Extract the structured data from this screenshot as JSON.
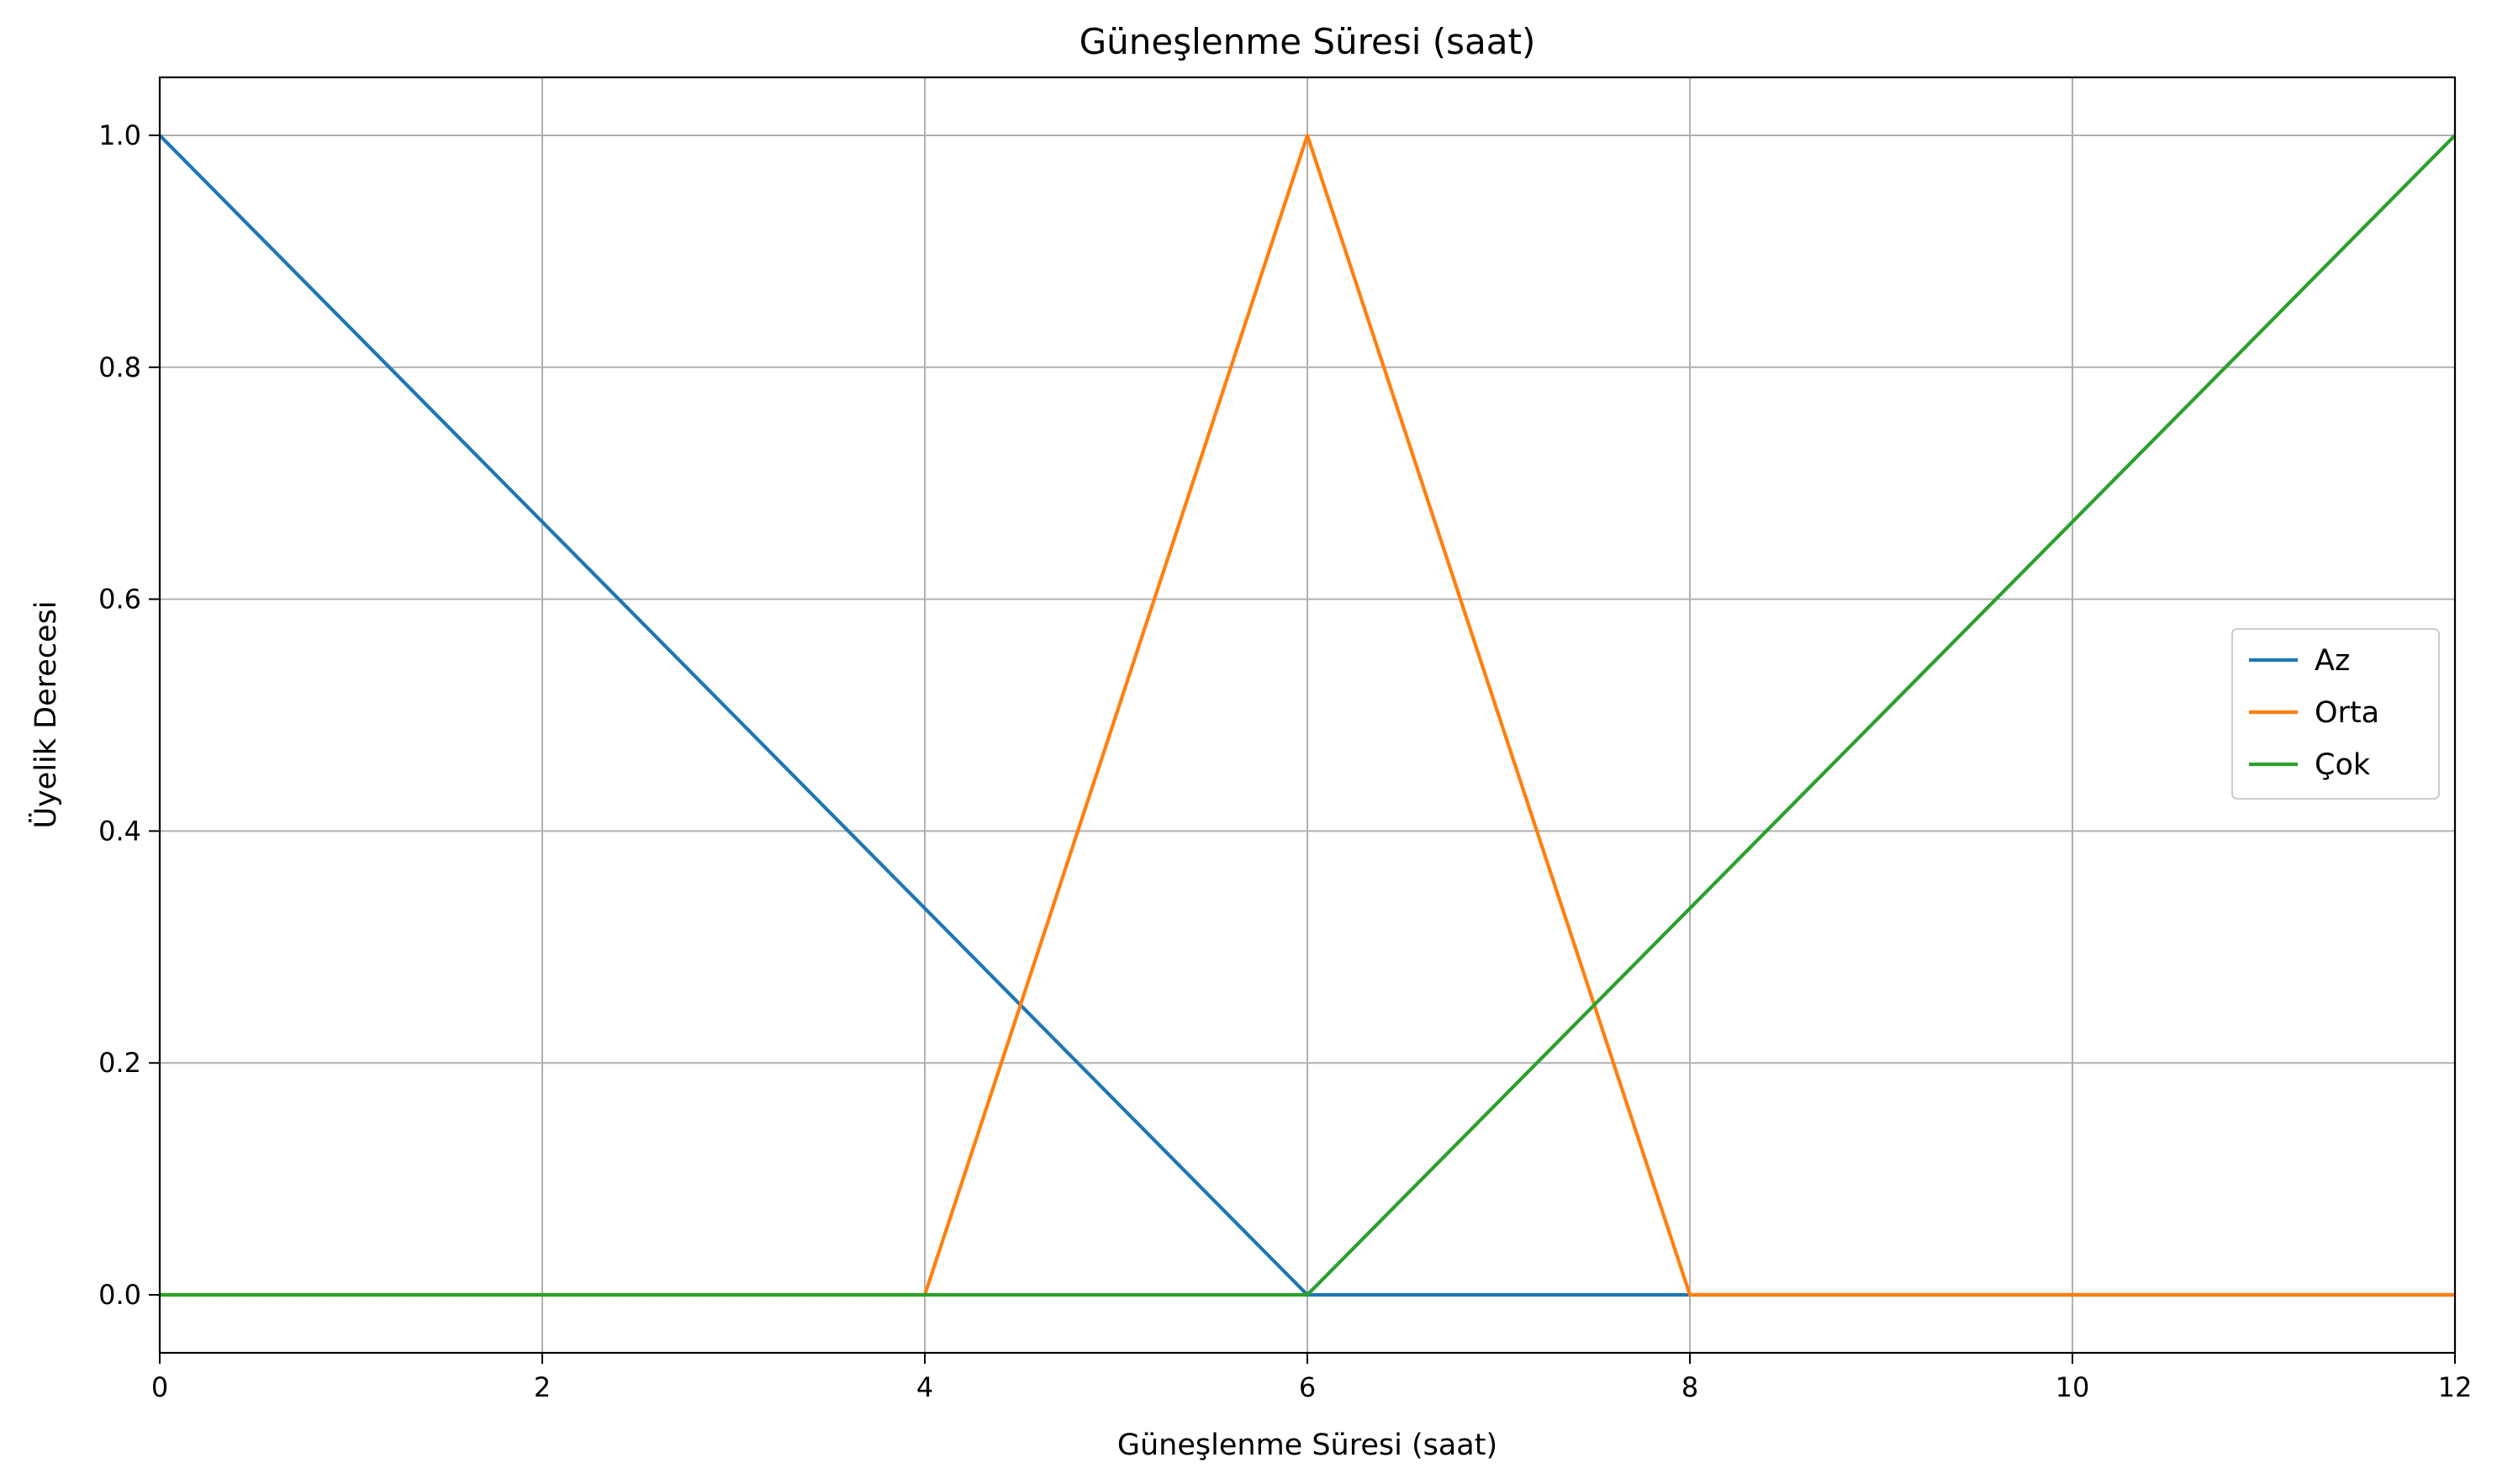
{
  "chart_data": {
    "type": "line",
    "title": "Güneşlenme Süresi (saat)",
    "xlabel": "Güneşlenme Süresi (saat)",
    "ylabel": "Üyelik Derecesi",
    "xlim": [
      0,
      12
    ],
    "ylim": [
      -0.05,
      1.05
    ],
    "xticks": [
      0,
      2,
      4,
      6,
      8,
      10,
      12
    ],
    "xtick_labels": [
      "0",
      "2",
      "4",
      "6",
      "8",
      "10",
      "12"
    ],
    "yticks": [
      0.0,
      0.2,
      0.4,
      0.6,
      0.8,
      1.0
    ],
    "ytick_labels": [
      "0.0",
      "0.2",
      "0.4",
      "0.6",
      "0.8",
      "1.0"
    ],
    "grid": true,
    "legend_position": "center-right",
    "series": [
      {
        "name": "Az",
        "color": "#1f77b4",
        "x": [
          0,
          6,
          12
        ],
        "y": [
          1.0,
          0.0,
          0.0
        ]
      },
      {
        "name": "Orta",
        "color": "#ff7f0e",
        "x": [
          0,
          4,
          6,
          8,
          12
        ],
        "y": [
          0.0,
          0.0,
          1.0,
          0.0,
          0.0
        ]
      },
      {
        "name": "Çok",
        "color": "#2ca02c",
        "x": [
          0,
          6,
          12
        ],
        "y": [
          0.0,
          0.0,
          1.0
        ]
      }
    ]
  }
}
